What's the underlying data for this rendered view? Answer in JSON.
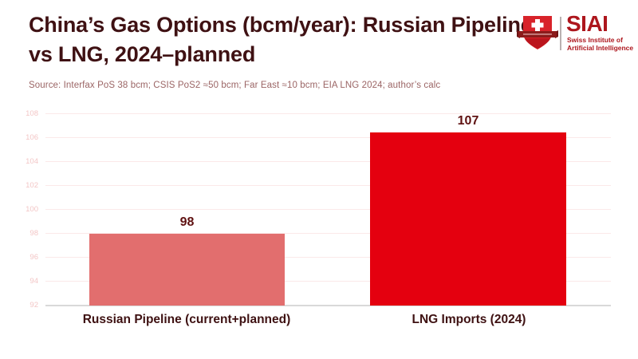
{
  "header": {
    "title": "China’s Gas Options (bcm/year): Russian Pipeline vs LNG, 2024–planned",
    "source": "Source: Interfax PoS 38 bcm; CSIS PoS2 ≈50 bcm; Far East ≈10 bcm; EIA LNG 2024; author’s calc"
  },
  "logo": {
    "acronym": "SIAI",
    "subtitle_line1": "Swiss Institute of",
    "subtitle_line2": "Artificial Intelligence",
    "brand_red": "#ad161d",
    "shield_red": "#d8232a",
    "banner_dark_red": "#8c1b1b"
  },
  "chart_data": {
    "type": "bar",
    "title": "China’s Gas Options (bcm/year): Russian Pipeline vs LNG, 2024–planned",
    "categories": [
      "Russian Pipeline (current+planned)",
      "LNG Imports (2024)"
    ],
    "values": [
      98,
      107
    ],
    "bar_colors": [
      "#e26e6e",
      "#e4000f"
    ],
    "ylabel": "",
    "xlabel": "",
    "ylim": [
      92,
      108
    ],
    "yticks": [
      92,
      94,
      96,
      98,
      100,
      102,
      104,
      106,
      108
    ],
    "grid": true,
    "legend": "none",
    "gridline_color": "#fbe9e9",
    "baseline_color": "#d9d9d9",
    "tick_label_color": "#f3c6c6",
    "value_label_color": "#5f1111",
    "category_label_color": "#3e1112",
    "title_color": "#3f1113"
  }
}
